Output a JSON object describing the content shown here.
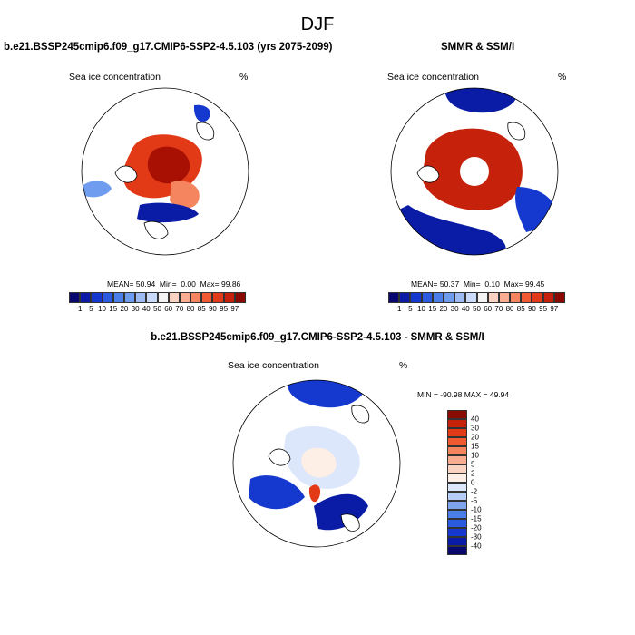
{
  "title": "DJF",
  "panels": [
    {
      "title": "b.e21.BSSP245cmip6.f09_g17.CMIP6-SSP2-4.5.103 (yrs 2075-2099)",
      "left_label": "Sea ice concentration",
      "right_label": "%",
      "mean_label": "MEAN=",
      "mean_value": "50.94",
      "min_label": "Min=",
      "min_value": "0.00",
      "max_label": "Max=",
      "max_value": "99.86"
    },
    {
      "title": "SMMR & SSM/I",
      "left_label": "Sea ice concentration",
      "right_label": "%",
      "mean_label": "MEAN=",
      "mean_value": "50.37",
      "min_label": "Min=",
      "min_value": "0.10",
      "max_label": "Max=",
      "max_value": "99.45"
    },
    {
      "title": "b.e21.BSSP245cmip6.f09_g17.CMIP6-SSP2-4.5.103 - SMMR & SSM/I",
      "left_label": "Sea ice concentration",
      "right_label": "%",
      "minmax_text": "MIN = -90.98  MAX =  49.94"
    }
  ],
  "colorbar_concentration": {
    "colors": [
      "#08086e",
      "#0a1ca6",
      "#1538cf",
      "#2a5be0",
      "#4a7ee8",
      "#6f9cef",
      "#9dbcf4",
      "#c9dbf9",
      "#f4f4f4",
      "#fbd3c2",
      "#f8ac90",
      "#f5855f",
      "#ef5a33",
      "#e23a17",
      "#c5210b",
      "#8a0a00"
    ],
    "ticks": [
      "1",
      "5",
      "10",
      "15",
      "20",
      "30",
      "40",
      "50",
      "60",
      "70",
      "80",
      "85",
      "90",
      "95",
      "97"
    ]
  },
  "colorbar_difference": {
    "colors": [
      "#8a0a00",
      "#c5210b",
      "#e23a17",
      "#ef5a33",
      "#f5855f",
      "#f8ac90",
      "#fbd3c2",
      "#fdeee6",
      "#dce7fb",
      "#b6cdf7",
      "#7fa4ee",
      "#4a7ee8",
      "#2a5be0",
      "#1538cf",
      "#0a1ca6",
      "#08086e"
    ],
    "ticks": [
      "40",
      "30",
      "20",
      "15",
      "10",
      "5",
      "2",
      "0",
      "-2",
      "-5",
      "-10",
      "-15",
      "-20",
      "-30",
      "-40"
    ]
  }
}
